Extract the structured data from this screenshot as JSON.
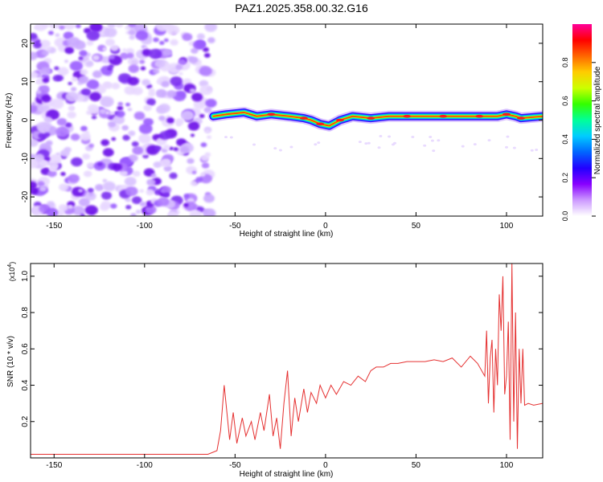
{
  "title": "PAZ1.2025.358.00.32.G16",
  "chart_data": [
    {
      "type": "heatmap",
      "title": "PAZ1.2025.358.00.32.G16",
      "xlabel": "Height of straight line (km)",
      "ylabel": "Frequency (Hz)",
      "xlim": [
        -163,
        120
      ],
      "ylim": [
        -25,
        25
      ],
      "x_ticks": [
        -150,
        -100,
        -50,
        0,
        50,
        100
      ],
      "x_tick_labels": [
        "-150",
        "-100",
        "-50",
        "0",
        "50",
        "100"
      ],
      "y_ticks": [
        -20,
        -10,
        0,
        10,
        20
      ],
      "y_tick_labels": [
        "-20",
        "-10",
        "0",
        "10",
        "20"
      ],
      "noise_region_km": [
        -163,
        -63
      ],
      "ridge": {
        "x": [
          -62,
          -55,
          -45,
          -38,
          -30,
          -20,
          -12,
          -8,
          -3,
          2,
          8,
          15,
          25,
          35,
          45,
          55,
          65,
          75,
          85,
          95,
          100,
          105,
          108,
          120
        ],
        "y": [
          1,
          1.5,
          2,
          1,
          1.5,
          1,
          0.5,
          0,
          -1,
          -1.5,
          0,
          1,
          0.5,
          1,
          1,
          1,
          1,
          1,
          1,
          1,
          1.5,
          1,
          0.5,
          1
        ]
      },
      "colorbar": {
        "label": "Normalized spectral amplitude",
        "range": [
          0,
          1
        ],
        "ticks": [
          0.0,
          0.2,
          0.4,
          0.6,
          0.8
        ],
        "tick_labels": [
          "0.0",
          "0.2",
          "0.4",
          "0.6",
          "0.8"
        ],
        "colors": [
          "#ffffff",
          "#cc99ff",
          "#8800ff",
          "#2200ff",
          "#0066ff",
          "#00ccff",
          "#00ff99",
          "#33ff00",
          "#ccff00",
          "#ffcc00",
          "#ff6600",
          "#ff0000",
          "#ff0099"
        ]
      }
    },
    {
      "type": "line",
      "xlabel": "Height of straight line (km)",
      "ylabel": "SNR (10 * v/v)",
      "y_multiplier_label": "(x10",
      "y_multiplier_exp": "4",
      "y_multiplier_close": ")",
      "xlim": [
        -163,
        120
      ],
      "ylim": [
        0,
        1.07
      ],
      "x_ticks": [
        -150,
        -100,
        -50,
        0,
        50,
        100
      ],
      "x_tick_labels": [
        "-150",
        "-100",
        "-50",
        "0",
        "50",
        "100"
      ],
      "y_ticks": [
        0.2,
        0.4,
        0.6,
        0.8,
        1.0
      ],
      "y_tick_labels": [
        "0.2",
        "0.4",
        "0.6",
        "0.8",
        "1.0"
      ],
      "line_color": "#e53030",
      "series": [
        {
          "name": "SNR",
          "x": [
            -163,
            -140,
            -120,
            -100,
            -80,
            -65,
            -60,
            -58,
            -56,
            -53,
            -51,
            -49,
            -46,
            -44,
            -41,
            -39,
            -36,
            -34,
            -31,
            -29,
            -27,
            -25,
            -23,
            -21,
            -19,
            -17,
            -15,
            -12,
            -10,
            -8,
            -5,
            -3,
            0,
            3,
            6,
            10,
            14,
            18,
            22,
            25,
            28,
            32,
            36,
            40,
            45,
            50,
            55,
            60,
            65,
            70,
            75,
            80,
            84,
            88,
            89,
            90,
            91,
            92,
            93,
            94,
            95,
            96,
            97,
            98,
            99,
            100,
            101,
            102,
            103,
            104,
            105,
            106,
            107,
            108,
            109,
            110,
            112,
            115,
            120
          ],
          "y": [
            0.02,
            0.02,
            0.02,
            0.02,
            0.02,
            0.02,
            0.04,
            0.15,
            0.4,
            0.1,
            0.25,
            0.08,
            0.22,
            0.12,
            0.2,
            0.1,
            0.25,
            0.15,
            0.35,
            0.12,
            0.22,
            0.05,
            0.3,
            0.48,
            0.12,
            0.33,
            0.2,
            0.38,
            0.25,
            0.36,
            0.3,
            0.4,
            0.33,
            0.4,
            0.35,
            0.42,
            0.4,
            0.45,
            0.42,
            0.48,
            0.5,
            0.5,
            0.52,
            0.52,
            0.53,
            0.53,
            0.53,
            0.54,
            0.53,
            0.55,
            0.5,
            0.56,
            0.52,
            0.45,
            0.7,
            0.3,
            0.55,
            0.65,
            0.25,
            0.6,
            0.4,
            0.9,
            0.7,
            1.0,
            0.35,
            0.45,
            0.75,
            0.1,
            1.07,
            0.2,
            0.8,
            0.05,
            0.6,
            0.3,
            0.6,
            0.29,
            0.3,
            0.29,
            0.3
          ]
        }
      ]
    }
  ]
}
